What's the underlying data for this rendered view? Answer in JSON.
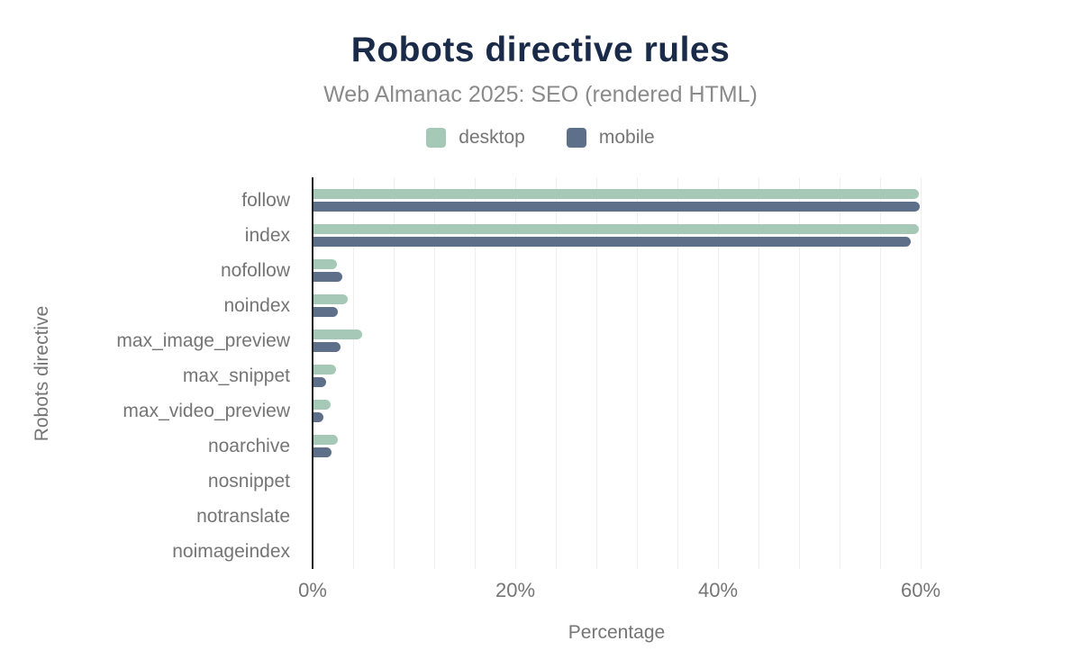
{
  "header": {
    "title": "Robots directive rules",
    "subtitle": "Web Almanac 2025: SEO (rendered HTML)"
  },
  "colors": {
    "title": "#1a2b49",
    "subtitle": "#8a8a8a",
    "muted_text": "#757575",
    "axis_line": "#202124",
    "gridline": "#eeeeee",
    "desktop": "#a6c9b7",
    "mobile": "#5e7089"
  },
  "chart_data": {
    "type": "bar",
    "orientation": "horizontal",
    "title": "Robots directive rules",
    "subtitle": "Web Almanac 2025: SEO (rendered HTML)",
    "xlabel": "Percentage",
    "ylabel": "Robots directive",
    "xlim": [
      0,
      60
    ],
    "grid_step": 4,
    "grid": true,
    "legend_position": "top-center",
    "x_ticks": [
      {
        "label": "0%",
        "value": 0
      },
      {
        "label": "20%",
        "value": 20
      },
      {
        "label": "40%",
        "value": 40
      },
      {
        "label": "60%",
        "value": 60
      }
    ],
    "categories": [
      "follow",
      "index",
      "nofollow",
      "noindex",
      "max_image_preview",
      "max_snippet",
      "max_video_preview",
      "noarchive",
      "nosnippet",
      "notranslate",
      "noimageindex"
    ],
    "series": [
      {
        "name": "desktop",
        "color": "#a6c9b7",
        "values": [
          59.7,
          59.7,
          2.3,
          3.4,
          4.8,
          2.2,
          1.7,
          2.4,
          0,
          0,
          0
        ]
      },
      {
        "name": "mobile",
        "color": "#5e7089",
        "values": [
          59.8,
          58.9,
          2.8,
          2.4,
          2.7,
          1.2,
          1.0,
          1.8,
          0,
          0,
          0
        ]
      }
    ]
  }
}
